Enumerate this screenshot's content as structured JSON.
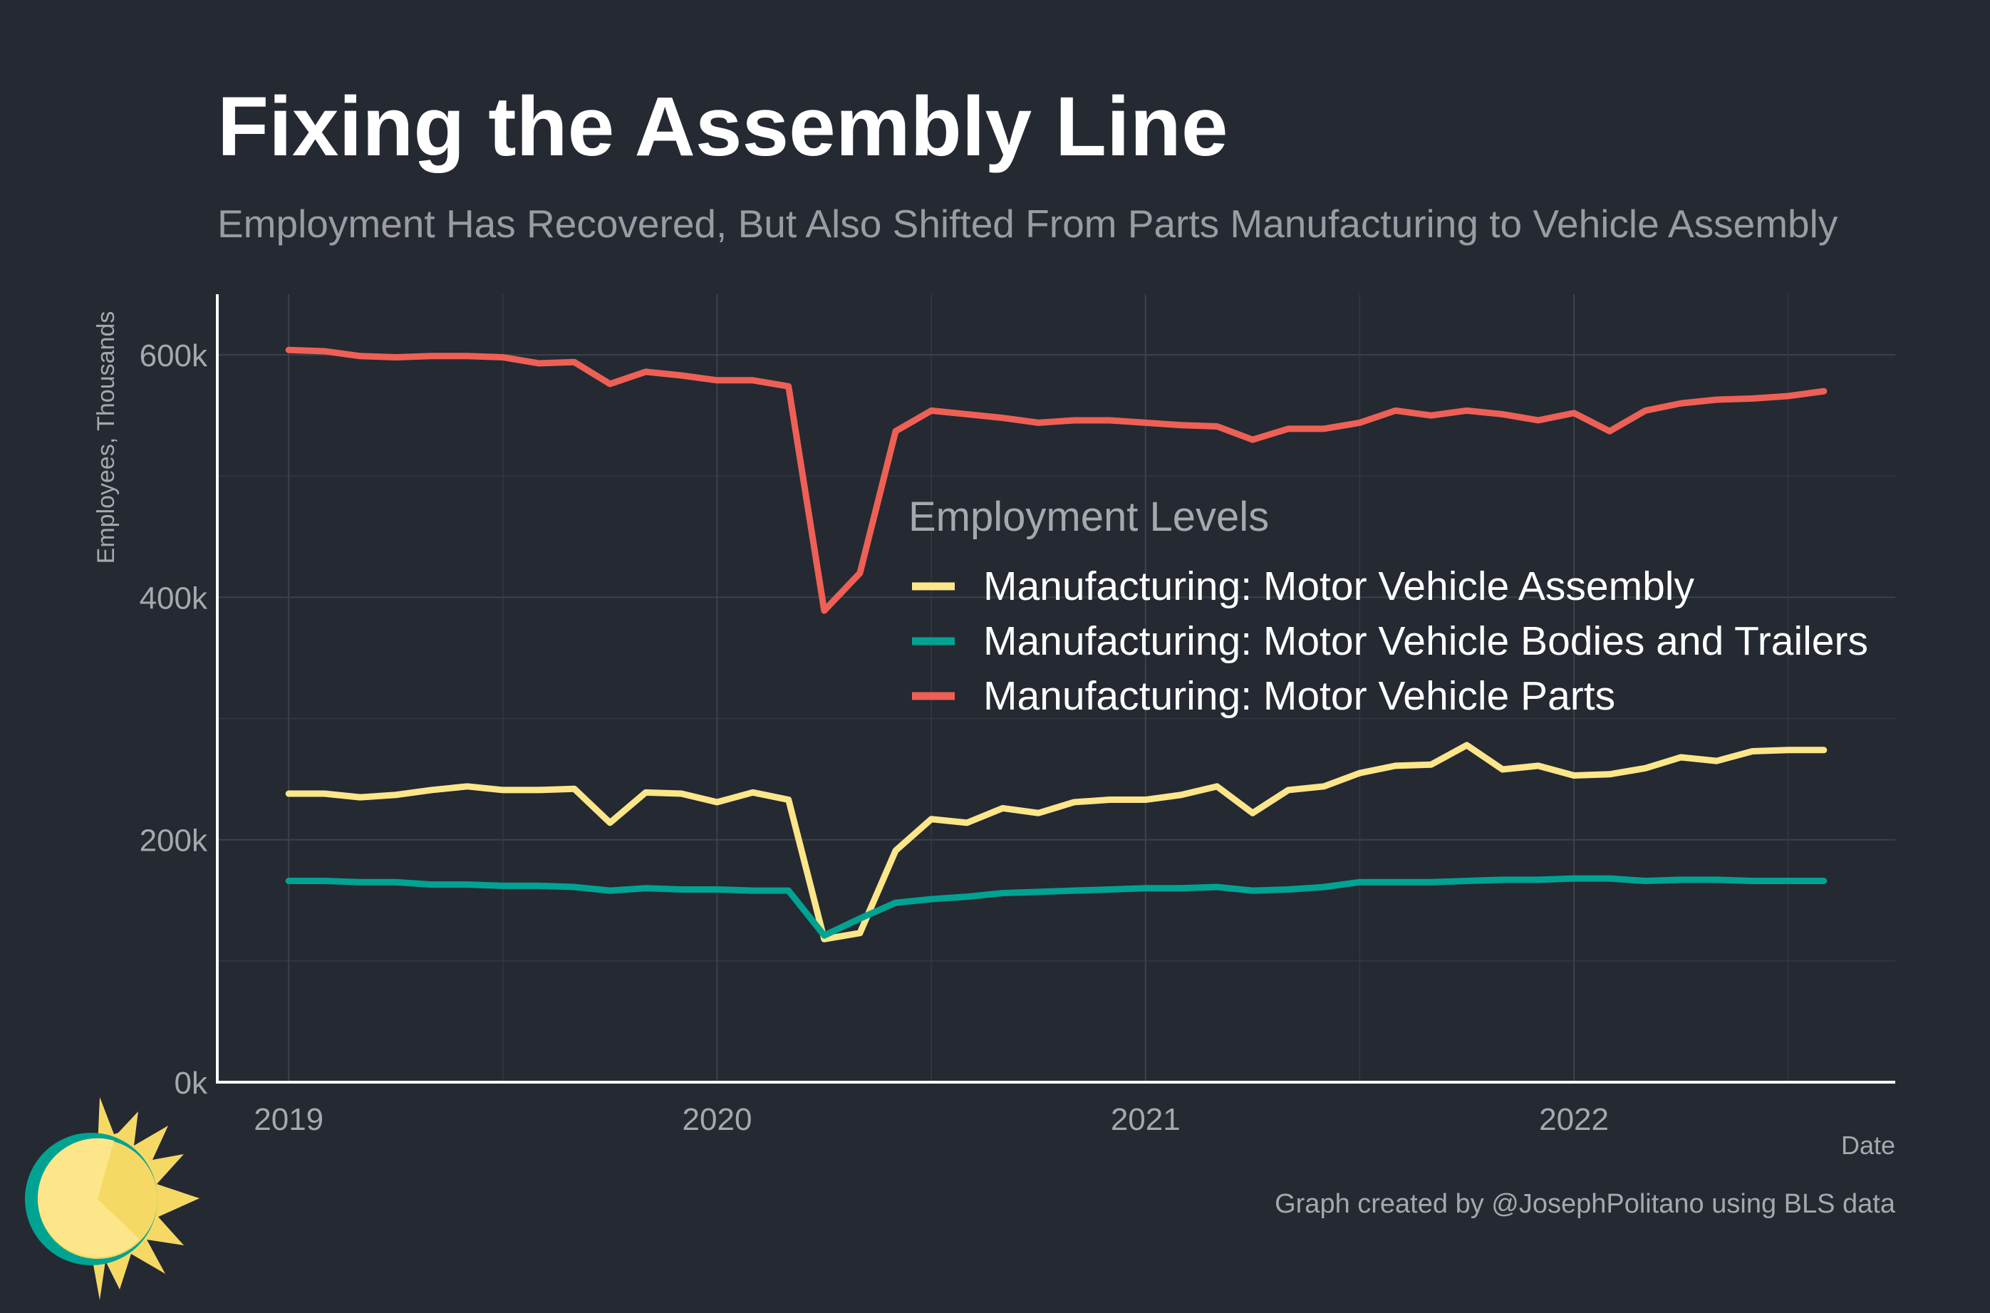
{
  "chart_data": {
    "type": "line",
    "title": "Fixing the Assembly Line",
    "subtitle": "Employment Has Recovered, But Also Shifted From Parts Manufacturing to Vehicle Assembly",
    "xlabel": "Date",
    "ylabel": "Employees, Thousands",
    "x_ticks": [
      "2019",
      "2020",
      "2021",
      "2022"
    ],
    "y_ticks": [
      "0k",
      "200k",
      "400k",
      "600k"
    ],
    "xlim": [
      "2018-11",
      "2022-10"
    ],
    "ylim": [
      0,
      650
    ],
    "grid": true,
    "legend": {
      "title": "Employment Levels",
      "placement": "center-right"
    },
    "caption": "Graph created by @JosephPolitano using BLS data",
    "x": [
      "2019-01",
      "2019-02",
      "2019-03",
      "2019-04",
      "2019-05",
      "2019-06",
      "2019-07",
      "2019-08",
      "2019-09",
      "2019-10",
      "2019-11",
      "2019-12",
      "2020-01",
      "2020-02",
      "2020-03",
      "2020-04",
      "2020-05",
      "2020-06",
      "2020-07",
      "2020-08",
      "2020-09",
      "2020-10",
      "2020-11",
      "2020-12",
      "2021-01",
      "2021-02",
      "2021-03",
      "2021-04",
      "2021-05",
      "2021-06",
      "2021-07",
      "2021-08",
      "2021-09",
      "2021-10",
      "2021-11",
      "2021-12",
      "2022-01",
      "2022-02",
      "2022-03",
      "2022-04",
      "2022-05",
      "2022-06",
      "2022-07",
      "2022-08"
    ],
    "series": [
      {
        "name": "Manufacturing: Motor Vehicle Assembly",
        "color": "#fde68a",
        "values": [
          238,
          238,
          235,
          237,
          241,
          244,
          241,
          241,
          242,
          214,
          239,
          238,
          231,
          239,
          233,
          118,
          123,
          191,
          217,
          214,
          226,
          222,
          231,
          233,
          233,
          237,
          244,
          222,
          241,
          244,
          255,
          261,
          262,
          278,
          258,
          261,
          253,
          254,
          259,
          268,
          265,
          273,
          274,
          274
        ]
      },
      {
        "name": "Manufacturing: Motor Vehicle Bodies and Trailers",
        "color": "#00a392",
        "values": [
          166,
          166,
          165,
          165,
          163,
          163,
          162,
          162,
          161,
          158,
          160,
          159,
          159,
          158,
          158,
          121,
          135,
          148,
          151,
          153,
          156,
          157,
          158,
          159,
          160,
          160,
          161,
          158,
          159,
          161,
          165,
          165,
          165,
          166,
          167,
          167,
          168,
          168,
          166,
          167,
          167,
          166,
          166,
          166
        ]
      },
      {
        "name": "Manufacturing: Motor Vehicle Parts",
        "color": "#ee6055",
        "values": [
          604,
          603,
          599,
          598,
          599,
          599,
          598,
          593,
          594,
          576,
          586,
          583,
          579,
          579,
          574,
          389,
          420,
          537,
          554,
          551,
          548,
          544,
          546,
          546,
          544,
          542,
          541,
          530,
          539,
          539,
          544,
          554,
          550,
          554,
          551,
          546,
          552,
          537,
          554,
          560,
          563,
          564,
          566,
          570
        ]
      }
    ]
  }
}
